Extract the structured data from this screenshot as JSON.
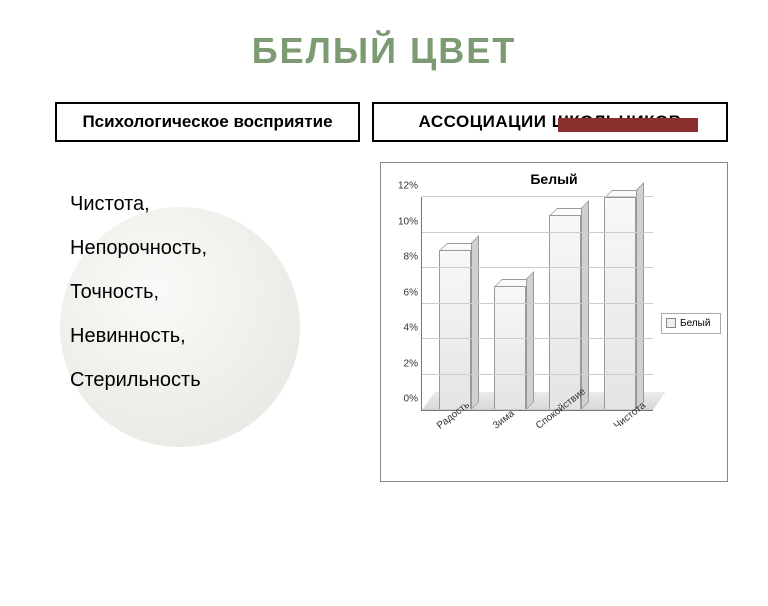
{
  "title": {
    "text": "БЕЛЫЙ ЦВЕТ",
    "color": "#7d9b72",
    "fontsize": 36
  },
  "accent_bar": {
    "color": "#8b2e2e"
  },
  "headers": {
    "left": "Психологическое восприятие",
    "right": "АССОЦИАЦИИ ШКОЛЬНИКОВ"
  },
  "word_list": [
    "Чистота,",
    "Непорочность,",
    "Точность,",
    "Невинность,",
    "Стерильность"
  ],
  "chart": {
    "type": "bar",
    "title": "Белый",
    "title_fontsize": 14,
    "categories": [
      "Радость",
      "Зима",
      "Спокойствие",
      "Чистота"
    ],
    "values": [
      9,
      7,
      11,
      12
    ],
    "ylim": [
      0,
      12
    ],
    "ytick_step": 2,
    "ytick_suffix": "%",
    "bar_fill": "#f0f0f0",
    "bar_border": "#999999",
    "grid_color": "#cccccc",
    "axis_color": "#777777",
    "background_color": "#ffffff",
    "label_fontsize": 10,
    "legend": {
      "label": "Белый",
      "swatch_color": "#f0f0f0"
    }
  }
}
